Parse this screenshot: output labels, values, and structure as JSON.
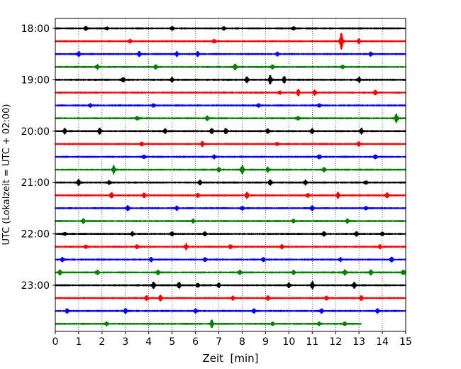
{
  "chart_data": {
    "type": "line",
    "title": "",
    "xlabel": "Zeit  [min]",
    "ylabel": "UTC (Lokalzeit = UTC + 02:00)",
    "xlim": [
      0,
      15
    ],
    "x_ticks": [
      "0",
      "1",
      "2",
      "3",
      "4",
      "5",
      "6",
      "7",
      "8",
      "9",
      "10",
      "11",
      "12",
      "13",
      "14",
      "15"
    ],
    "y_ticks": [
      "18:00",
      "19:00",
      "20:00",
      "21:00",
      "22:00",
      "23:00"
    ],
    "grid": "vertical dotted",
    "traces": [
      {
        "start": "18:00",
        "color": "#000000",
        "end_min": 15,
        "events": [
          [
            1.3,
            0.35
          ],
          [
            2.2,
            0.3
          ],
          [
            5.0,
            0.35
          ],
          [
            7.2,
            0.3
          ],
          [
            10.2,
            0.3
          ]
        ]
      },
      {
        "start": "18:15",
        "color": "#ff0000",
        "end_min": 15,
        "events": [
          [
            3.2,
            0.3
          ],
          [
            6.8,
            0.35
          ],
          [
            12.25,
            1.9
          ],
          [
            13.0,
            0.4
          ]
        ]
      },
      {
        "start": "18:30",
        "color": "#0000ff",
        "end_min": 15,
        "events": [
          [
            1.0,
            0.5
          ],
          [
            3.6,
            0.45
          ],
          [
            5.2,
            0.45
          ],
          [
            6.1,
            0.4
          ],
          [
            9.5,
            0.35
          ],
          [
            13.5,
            0.35
          ]
        ]
      },
      {
        "start": "18:45",
        "color": "#008000",
        "end_min": 15,
        "events": [
          [
            1.8,
            0.45
          ],
          [
            4.3,
            0.35
          ],
          [
            7.7,
            0.55
          ],
          [
            9.3,
            0.4
          ],
          [
            12.3,
            0.35
          ]
        ]
      },
      {
        "start": "19:00",
        "color": "#000000",
        "end_min": 15,
        "events": [
          [
            2.9,
            0.45
          ],
          [
            5.0,
            0.4
          ],
          [
            8.2,
            0.55
          ],
          [
            9.2,
            0.85
          ],
          [
            9.8,
            0.7
          ],
          [
            13.0,
            0.5
          ]
        ]
      },
      {
        "start": "19:15",
        "color": "#ff0000",
        "end_min": 15,
        "events": [
          [
            9.6,
            0.35
          ],
          [
            10.4,
            0.6
          ],
          [
            11.1,
            0.5
          ],
          [
            13.7,
            0.4
          ]
        ]
      },
      {
        "start": "19:30",
        "color": "#0000ff",
        "end_min": 15,
        "events": [
          [
            1.5,
            0.3
          ],
          [
            4.2,
            0.3
          ],
          [
            8.7,
            0.35
          ],
          [
            11.3,
            0.3
          ]
        ]
      },
      {
        "start": "19:45",
        "color": "#008000",
        "end_min": 15,
        "events": [
          [
            3.5,
            0.35
          ],
          [
            6.5,
            0.4
          ],
          [
            10.4,
            0.3
          ],
          [
            14.6,
            0.9
          ]
        ]
      },
      {
        "start": "20:00",
        "color": "#000000",
        "end_min": 15,
        "events": [
          [
            0.4,
            0.5
          ],
          [
            1.9,
            0.55
          ],
          [
            4.7,
            0.4
          ],
          [
            6.7,
            0.65
          ],
          [
            7.3,
            0.5
          ],
          [
            9.1,
            0.5
          ],
          [
            11.0,
            0.45
          ],
          [
            13.1,
            0.55
          ]
        ]
      },
      {
        "start": "20:15",
        "color": "#ff0000",
        "end_min": 15,
        "events": [
          [
            3.7,
            0.35
          ],
          [
            6.3,
            0.45
          ],
          [
            9.5,
            0.3
          ],
          [
            13.0,
            0.45
          ]
        ]
      },
      {
        "start": "20:30",
        "color": "#0000ff",
        "end_min": 15,
        "events": [
          [
            3.8,
            0.35
          ],
          [
            6.8,
            0.35
          ],
          [
            11.3,
            0.4
          ],
          [
            13.7,
            0.35
          ]
        ]
      },
      {
        "start": "20:45",
        "color": "#008000",
        "end_min": 15,
        "events": [
          [
            2.5,
            0.8
          ],
          [
            7.0,
            0.45
          ],
          [
            8.0,
            0.85
          ],
          [
            9.1,
            0.45
          ],
          [
            11.5,
            0.45
          ]
        ]
      },
      {
        "start": "21:00",
        "color": "#000000",
        "end_min": 15,
        "events": [
          [
            1.0,
            0.55
          ],
          [
            2.3,
            0.35
          ],
          [
            6.2,
            0.4
          ],
          [
            9.2,
            0.6
          ],
          [
            10.7,
            0.45
          ],
          [
            13.3,
            0.35
          ]
        ]
      },
      {
        "start": "21:15",
        "color": "#ff0000",
        "end_min": 15,
        "events": [
          [
            2.4,
            0.5
          ],
          [
            3.8,
            0.4
          ],
          [
            6.1,
            0.4
          ],
          [
            8.2,
            0.65
          ],
          [
            10.8,
            0.4
          ],
          [
            12.1,
            0.55
          ],
          [
            14.2,
            0.45
          ]
        ]
      },
      {
        "start": "21:30",
        "color": "#0000ff",
        "end_min": 15,
        "events": [
          [
            3.1,
            0.5
          ],
          [
            5.2,
            0.35
          ],
          [
            8.0,
            0.35
          ],
          [
            11.0,
            0.45
          ],
          [
            13.3,
            0.35
          ]
        ]
      },
      {
        "start": "21:45",
        "color": "#008000",
        "end_min": 15,
        "events": [
          [
            1.2,
            0.4
          ],
          [
            5.9,
            0.35
          ],
          [
            10.2,
            0.35
          ],
          [
            12.5,
            0.35
          ]
        ]
      },
      {
        "start": "22:00",
        "color": "#000000",
        "end_min": 15,
        "events": [
          [
            0.4,
            0.35
          ],
          [
            3.3,
            0.4
          ],
          [
            5.0,
            0.4
          ],
          [
            6.4,
            0.35
          ],
          [
            11.5,
            0.4
          ],
          [
            12.9,
            0.45
          ],
          [
            14.0,
            0.35
          ]
        ]
      },
      {
        "start": "22:15",
        "color": "#ff0000",
        "end_min": 15,
        "events": [
          [
            1.3,
            0.35
          ],
          [
            3.5,
            0.4
          ],
          [
            5.6,
            0.6
          ],
          [
            7.5,
            0.4
          ],
          [
            9.7,
            0.35
          ],
          [
            13.9,
            0.35
          ]
        ]
      },
      {
        "start": "22:30",
        "color": "#0000ff",
        "end_min": 15,
        "events": [
          [
            0.3,
            0.4
          ],
          [
            4.1,
            0.4
          ],
          [
            6.4,
            0.35
          ],
          [
            8.9,
            0.45
          ],
          [
            12.2,
            0.4
          ],
          [
            14.4,
            0.45
          ]
        ]
      },
      {
        "start": "22:45",
        "color": "#008000",
        "end_min": 15,
        "events": [
          [
            0.2,
            0.45
          ],
          [
            1.8,
            0.4
          ],
          [
            4.4,
            0.4
          ],
          [
            7.9,
            0.45
          ],
          [
            10.2,
            0.4
          ],
          [
            12.4,
            0.5
          ],
          [
            13.5,
            0.45
          ],
          [
            14.9,
            0.45
          ]
        ]
      },
      {
        "start": "23:00",
        "color": "#000000",
        "end_min": 15,
        "events": [
          [
            4.2,
            0.7
          ],
          [
            5.3,
            0.6
          ],
          [
            6.1,
            0.4
          ],
          [
            7.0,
            0.4
          ],
          [
            10.0,
            0.45
          ],
          [
            11.0,
            0.8
          ],
          [
            12.8,
            0.55
          ]
        ]
      },
      {
        "start": "23:15",
        "color": "#ff0000",
        "end_min": 15,
        "events": [
          [
            3.9,
            0.5
          ],
          [
            4.5,
            0.55
          ],
          [
            7.6,
            0.4
          ],
          [
            9.1,
            0.4
          ],
          [
            11.6,
            0.4
          ],
          [
            13.1,
            0.45
          ]
        ]
      },
      {
        "start": "23:30",
        "color": "#0000ff",
        "end_min": 15,
        "events": [
          [
            0.5,
            0.45
          ],
          [
            3.0,
            0.45
          ],
          [
            6.0,
            0.4
          ],
          [
            8.5,
            0.45
          ],
          [
            11.4,
            0.4
          ],
          [
            13.8,
            0.35
          ]
        ]
      },
      {
        "start": "23:45",
        "color": "#008000",
        "end_min": 13.1,
        "events": [
          [
            2.2,
            0.35
          ],
          [
            6.7,
            0.7
          ],
          [
            9.3,
            0.35
          ],
          [
            11.3,
            0.35
          ],
          [
            12.4,
            0.35
          ]
        ]
      }
    ]
  }
}
